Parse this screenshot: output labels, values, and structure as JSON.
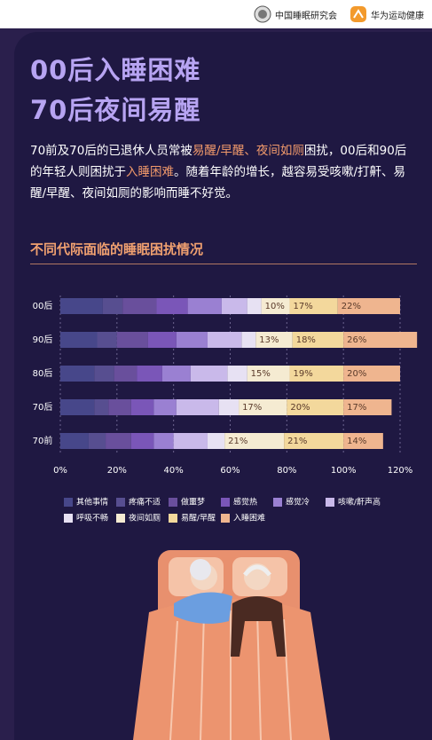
{
  "header": {
    "logo_left": "中国睡眠研究会",
    "logo_right": "华为运动健康"
  },
  "title": [
    "00后入睡困难",
    "70后夜间易醒"
  ],
  "paragraph": [
    {
      "text": "70前及70后的已退休人员常被"
    },
    {
      "text": "易醒/早醒、夜间如厕",
      "highlight": true
    },
    {
      "text": "困扰，00后和90后的年轻人则困扰于"
    },
    {
      "text": "入睡困难",
      "highlight": true
    },
    {
      "text": "。随着年龄的增长，越容易受咳嗽/打鼾、易醒/早醒、夜间如厕的影响而睡不好觉。"
    }
  ],
  "chart_data": {
    "type": "stacked-barh",
    "title": "不同代际面临的睡眠困扰情况",
    "categories": [
      "00后",
      "90后",
      "80后",
      "70后",
      "70前"
    ],
    "xlim": [
      0,
      120
    ],
    "xticks": [
      {
        "value": 0,
        "label": "0%"
      },
      {
        "value": 20,
        "label": "20%"
      },
      {
        "value": 40,
        "label": "40%"
      },
      {
        "value": 60,
        "label": "60%"
      },
      {
        "value": 80,
        "label": "80%"
      },
      {
        "value": 100,
        "label": "100%"
      },
      {
        "value": 120,
        "label": "120%"
      }
    ],
    "series": [
      {
        "name": "其他事情",
        "color": "#47478a",
        "values": [
          15,
          13,
          12,
          12,
          10
        ]
      },
      {
        "name": "疼痛不适",
        "color": "#574e90",
        "values": [
          7,
          7,
          7,
          5,
          6
        ]
      },
      {
        "name": "做噩梦",
        "color": "#694f9c",
        "values": [
          12,
          11,
          8,
          8,
          9
        ]
      },
      {
        "name": "感觉热",
        "color": "#7a56b8",
        "values": [
          11,
          10,
          9,
          8,
          8
        ]
      },
      {
        "name": "感觉冷",
        "color": "#9a80d2",
        "values": [
          12,
          11,
          10,
          8,
          7
        ]
      },
      {
        "name": "咳嗽/鼾声高",
        "color": "#c9b9ea",
        "values": [
          9,
          12,
          13,
          15,
          12
        ]
      },
      {
        "name": "呼吸不畅",
        "color": "#e7e1f3",
        "values": [
          5,
          5,
          7,
          7,
          6
        ]
      },
      {
        "name": "夜间如厕",
        "color": "#f5ebd2",
        "values": [
          10,
          13,
          15,
          17,
          21
        ],
        "value_labels": [
          "10%",
          "13%",
          "15%",
          "17%",
          "21%"
        ]
      },
      {
        "name": "易醒/早醒",
        "color": "#f3d89c",
        "values": [
          17,
          18,
          19,
          20,
          21
        ],
        "value_labels": [
          "17%",
          "18%",
          "19%",
          "20%",
          "21%"
        ]
      },
      {
        "name": "入睡困难",
        "color": "#efb58f",
        "values": [
          22,
          26,
          20,
          17,
          14
        ],
        "value_labels": [
          "22%",
          "26%",
          "20%",
          "17%",
          "14%"
        ]
      }
    ]
  }
}
